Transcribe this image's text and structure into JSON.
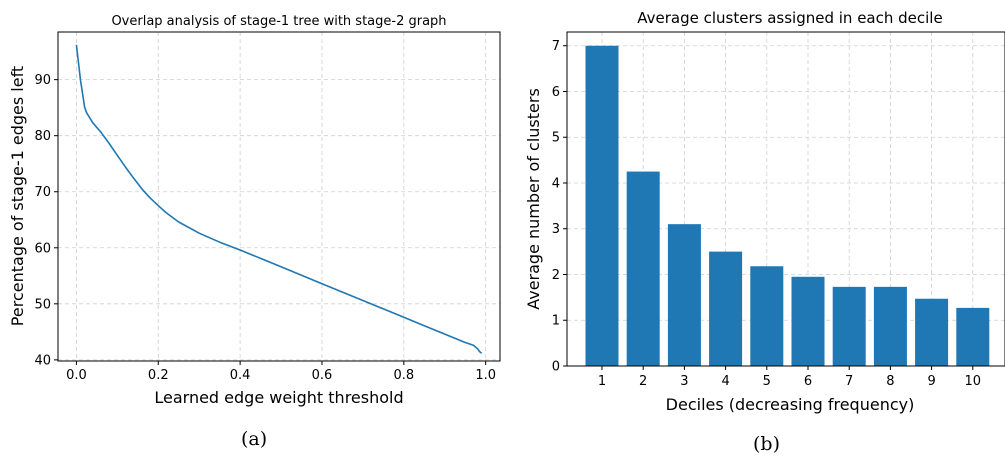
{
  "chart_data": [
    {
      "type": "line",
      "title": "Overlap analysis of stage-1 tree with stage-2 graph",
      "xlabel": "Learned edge weight threshold",
      "ylabel": "Percentage of stage-1 edges left",
      "xlim": [
        -0.045,
        1.035
      ],
      "ylim": [
        39.8,
        98.5
      ],
      "xticks": [
        0.0,
        0.2,
        0.4,
        0.6,
        0.8,
        1.0
      ],
      "xtick_labels": [
        "0.0",
        "0.2",
        "0.4",
        "0.6",
        "0.8",
        "1.0"
      ],
      "yticks": [
        40,
        50,
        60,
        70,
        80,
        90
      ],
      "ytick_labels": [
        "40",
        "50",
        "60",
        "70",
        "80",
        "90"
      ],
      "grid": true,
      "color": "#1f77b4",
      "series": [
        {
          "x": [
            0.0,
            0.005,
            0.01,
            0.015,
            0.02,
            0.025,
            0.04,
            0.06,
            0.08,
            0.1,
            0.12,
            0.14,
            0.16,
            0.18,
            0.2,
            0.22,
            0.25,
            0.3,
            0.35,
            0.4,
            0.45,
            0.5,
            0.55,
            0.6,
            0.65,
            0.7,
            0.75,
            0.8,
            0.85,
            0.9,
            0.95,
            0.97,
            0.98,
            0.985,
            0.99
          ],
          "y": [
            96.2,
            93.0,
            89.9,
            87.5,
            85.1,
            84.1,
            82.3,
            80.6,
            78.6,
            76.5,
            74.4,
            72.4,
            70.5,
            68.9,
            67.5,
            66.2,
            64.6,
            62.6,
            61.0,
            59.6,
            58.1,
            56.6,
            55.1,
            53.6,
            52.1,
            50.6,
            49.1,
            47.6,
            46.1,
            44.6,
            43.1,
            42.6,
            42.0,
            41.5,
            41.2
          ]
        }
      ]
    },
    {
      "type": "bar",
      "title": "Average clusters assigned in each decile",
      "xlabel": "Deciles (decreasing frequency)",
      "ylabel": "Average number of clusters",
      "categories": [
        "1",
        "2",
        "3",
        "4",
        "5",
        "6",
        "7",
        "8",
        "9",
        "10"
      ],
      "values": [
        7.0,
        4.25,
        3.1,
        2.5,
        2.18,
        1.95,
        1.73,
        1.73,
        1.47,
        1.27
      ],
      "ylim": [
        0,
        7.3
      ],
      "yticks": [
        0,
        1,
        2,
        3,
        4,
        5,
        6,
        7
      ],
      "ytick_labels": [
        "0",
        "1",
        "2",
        "3",
        "4",
        "5",
        "6",
        "7"
      ],
      "grid": true,
      "color": "#1f77b4"
    }
  ],
  "captions": [
    "(a)",
    "(b)"
  ]
}
